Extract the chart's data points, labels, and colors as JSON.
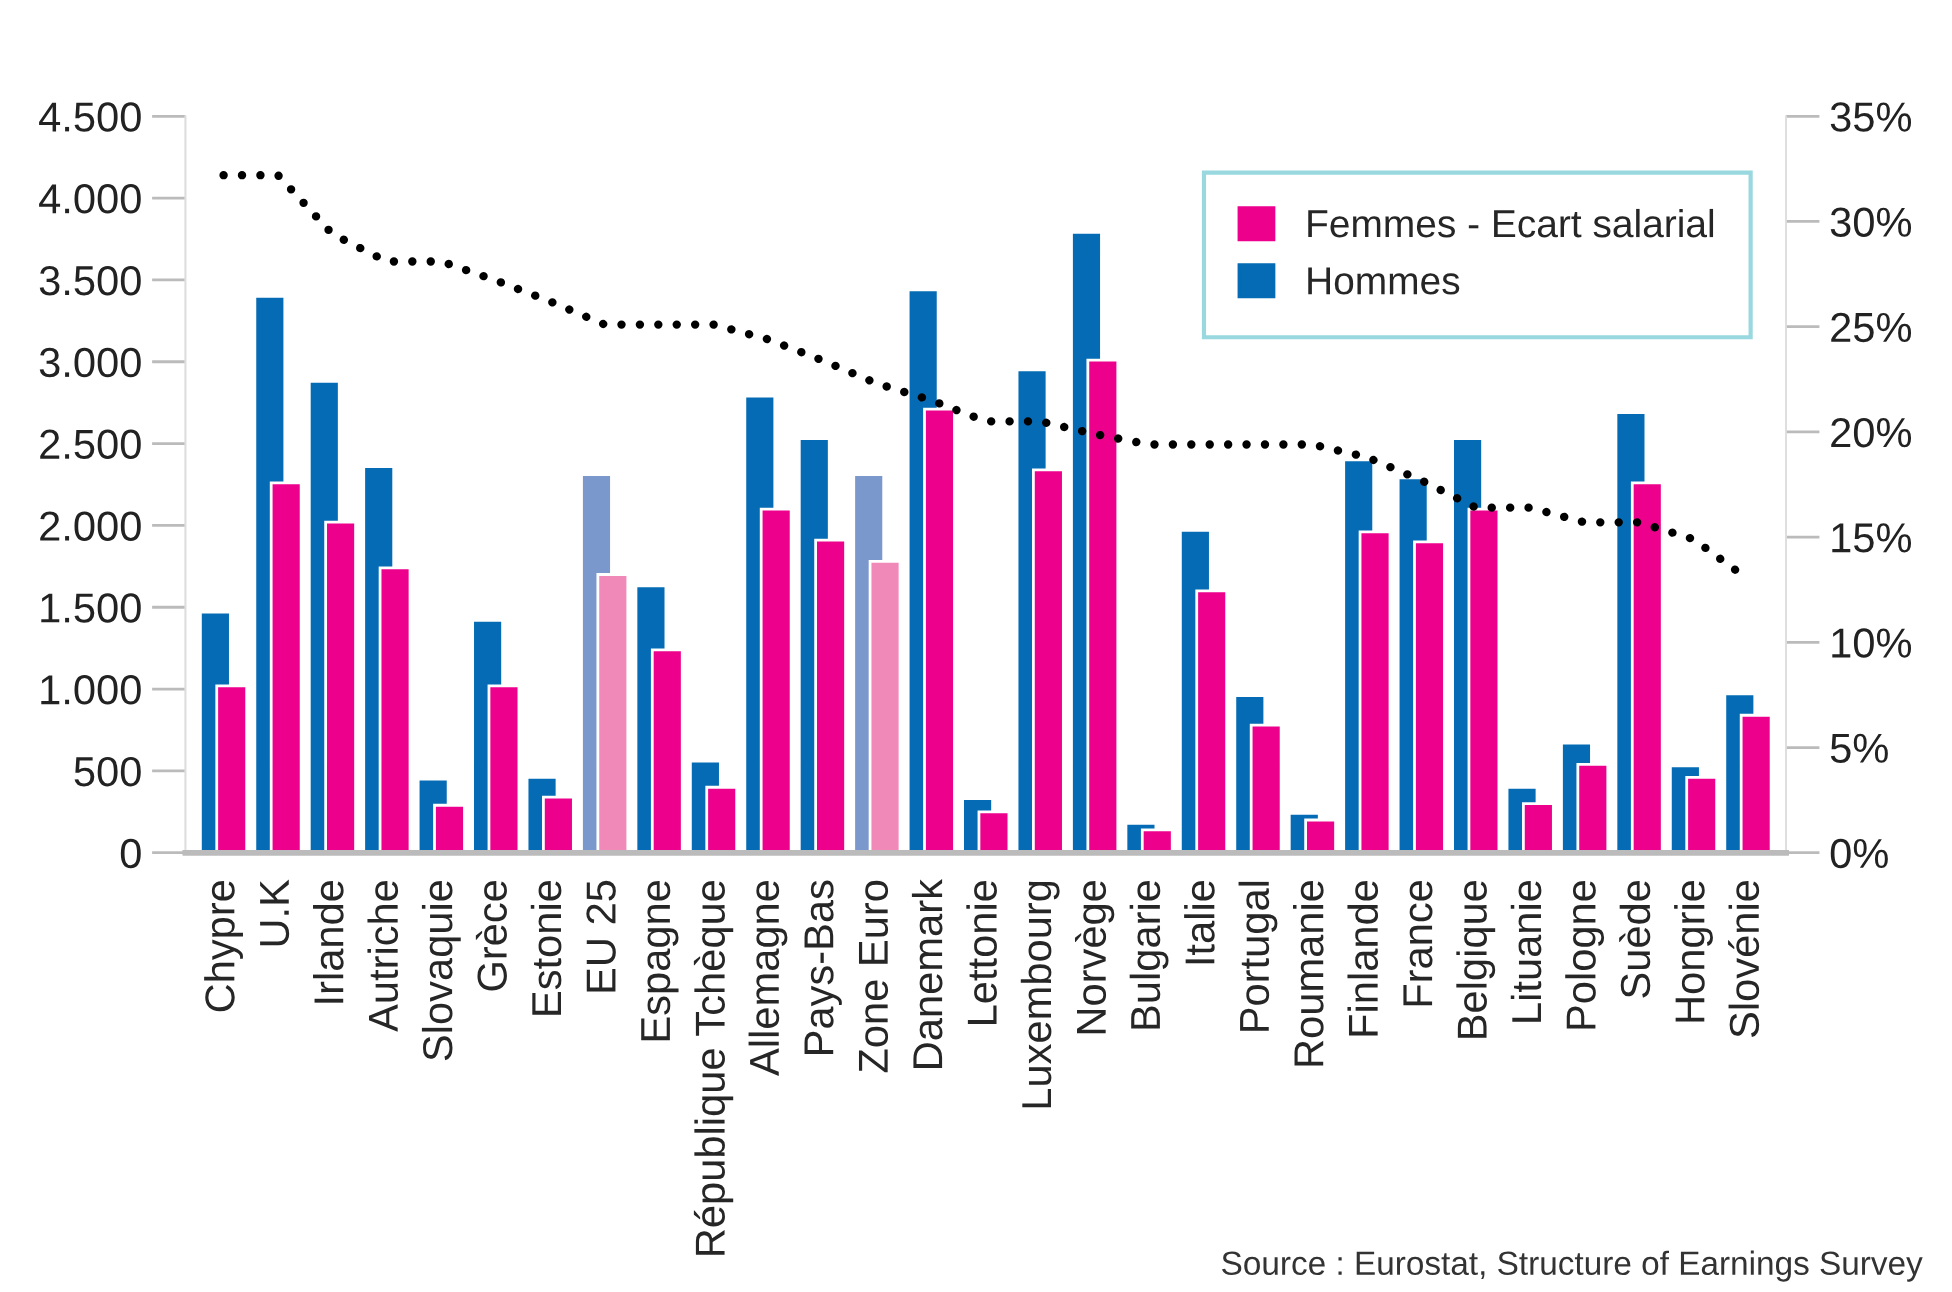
{
  "chart_data": {
    "type": "bar",
    "categories": [
      "Chypre",
      "U.K",
      "Irlande",
      "Autriche",
      "Slovaquie",
      "Grèce",
      "Estonie",
      "EU 25",
      "Espagne",
      "République Tchèque",
      "Allemagne",
      "Pays-Bas",
      "Zone Euro",
      "Danemark",
      "Lettonie",
      "Luxembourg",
      "Norvège",
      "Bulgarie",
      "Italie",
      "Portugal",
      "Roumanie",
      "Finlande",
      "France",
      "Belgique",
      "Lituanie",
      "Pologne",
      "Suède",
      "Hongrie",
      "Slovénie"
    ],
    "series": [
      {
        "name": "Hommes",
        "color": "#046bb4",
        "colors": [
          "#046bb4",
          "#046bb4",
          "#046bb4",
          "#046bb4",
          "#046bb4",
          "#046bb4",
          "#046bb4",
          "#7b98cc",
          "#046bb4",
          "#046bb4",
          "#046bb4",
          "#046bb4",
          "#7b98cc",
          "#046bb4",
          "#046bb4",
          "#046bb4",
          "#046bb4",
          "#046bb4",
          "#046bb4",
          "#046bb4",
          "#046bb4",
          "#046bb4",
          "#046bb4",
          "#046bb4",
          "#046bb4",
          "#046bb4",
          "#046bb4",
          "#046bb4",
          "#046bb4"
        ],
        "values": [
          1470,
          3400,
          2880,
          2360,
          450,
          1420,
          460,
          2310,
          1630,
          560,
          2790,
          2530,
          2310,
          3440,
          330,
          2950,
          3790,
          180,
          1970,
          960,
          240,
          2400,
          2290,
          2530,
          400,
          670,
          2690,
          530,
          970
        ]
      },
      {
        "name": "Femmes - Ecart salarial",
        "color": "#ec008c",
        "colors": [
          "#ec008c",
          "#ec008c",
          "#ec008c",
          "#ec008c",
          "#ec008c",
          "#ec008c",
          "#ec008c",
          "#f088b8",
          "#ec008c",
          "#ec008c",
          "#ec008c",
          "#ec008c",
          "#f088b8",
          "#ec008c",
          "#ec008c",
          "#ec008c",
          "#ec008c",
          "#ec008c",
          "#ec008c",
          "#ec008c",
          "#ec008c",
          "#ec008c",
          "#ec008c",
          "#ec008c",
          "#ec008c",
          "#ec008c",
          "#ec008c",
          "#ec008c",
          "#ec008c"
        ],
        "values": [
          1020,
          2260,
          2020,
          1740,
          290,
          1020,
          340,
          1700,
          1240,
          400,
          2100,
          1910,
          1780,
          2710,
          250,
          2340,
          3010,
          140,
          1600,
          780,
          200,
          1960,
          1900,
          2100,
          300,
          540,
          2260,
          460,
          840
        ]
      },
      {
        "type": "line",
        "axis": "y2",
        "color": "#000000",
        "line_style": "dotted",
        "marker": "none",
        "values": [
          32.2,
          32.2,
          29.4,
          28.1,
          28.1,
          27.2,
          26.2,
          25.1,
          25.1,
          25.1,
          24.4,
          23.4,
          22.3,
          21.5,
          20.5,
          20.5,
          19.9,
          19.4,
          19.4,
          19.4,
          19.4,
          18.8,
          17.7,
          16.4,
          16.4,
          15.7,
          15.7,
          14.9,
          13.0
        ]
      }
    ],
    "ylim": [
      0,
      4500
    ],
    "yticks": [
      0,
      500,
      {
        "value": 1000,
        "label": "1.000"
      },
      {
        "value": 1500,
        "label": "1.500"
      },
      {
        "value": 2000,
        "label": "2.000"
      },
      {
        "value": 2500,
        "label": "2.500"
      },
      {
        "value": 3000,
        "label": "3.000"
      },
      {
        "value": 3500,
        "label": "3.500"
      },
      {
        "value": 4000,
        "label": "4.000"
      },
      {
        "value": 4500,
        "label": "4.500"
      }
    ],
    "y2lim": [
      0,
      35
    ],
    "y2ticks": [
      {
        "value": 0,
        "label": "0%"
      },
      {
        "value": 5,
        "label": "5%"
      },
      {
        "value": 10,
        "label": "10%"
      },
      {
        "value": 15,
        "label": "15%"
      },
      {
        "value": 20,
        "label": "20%"
      },
      {
        "value": 25,
        "label": "25%"
      },
      {
        "value": 30,
        "label": "30%"
      },
      {
        "value": 35,
        "label": "35%"
      }
    ],
    "legend": "top right",
    "grid": false,
    "annotations": [
      "Source : Eurostat, Structure of Earnings Survey"
    ]
  }
}
